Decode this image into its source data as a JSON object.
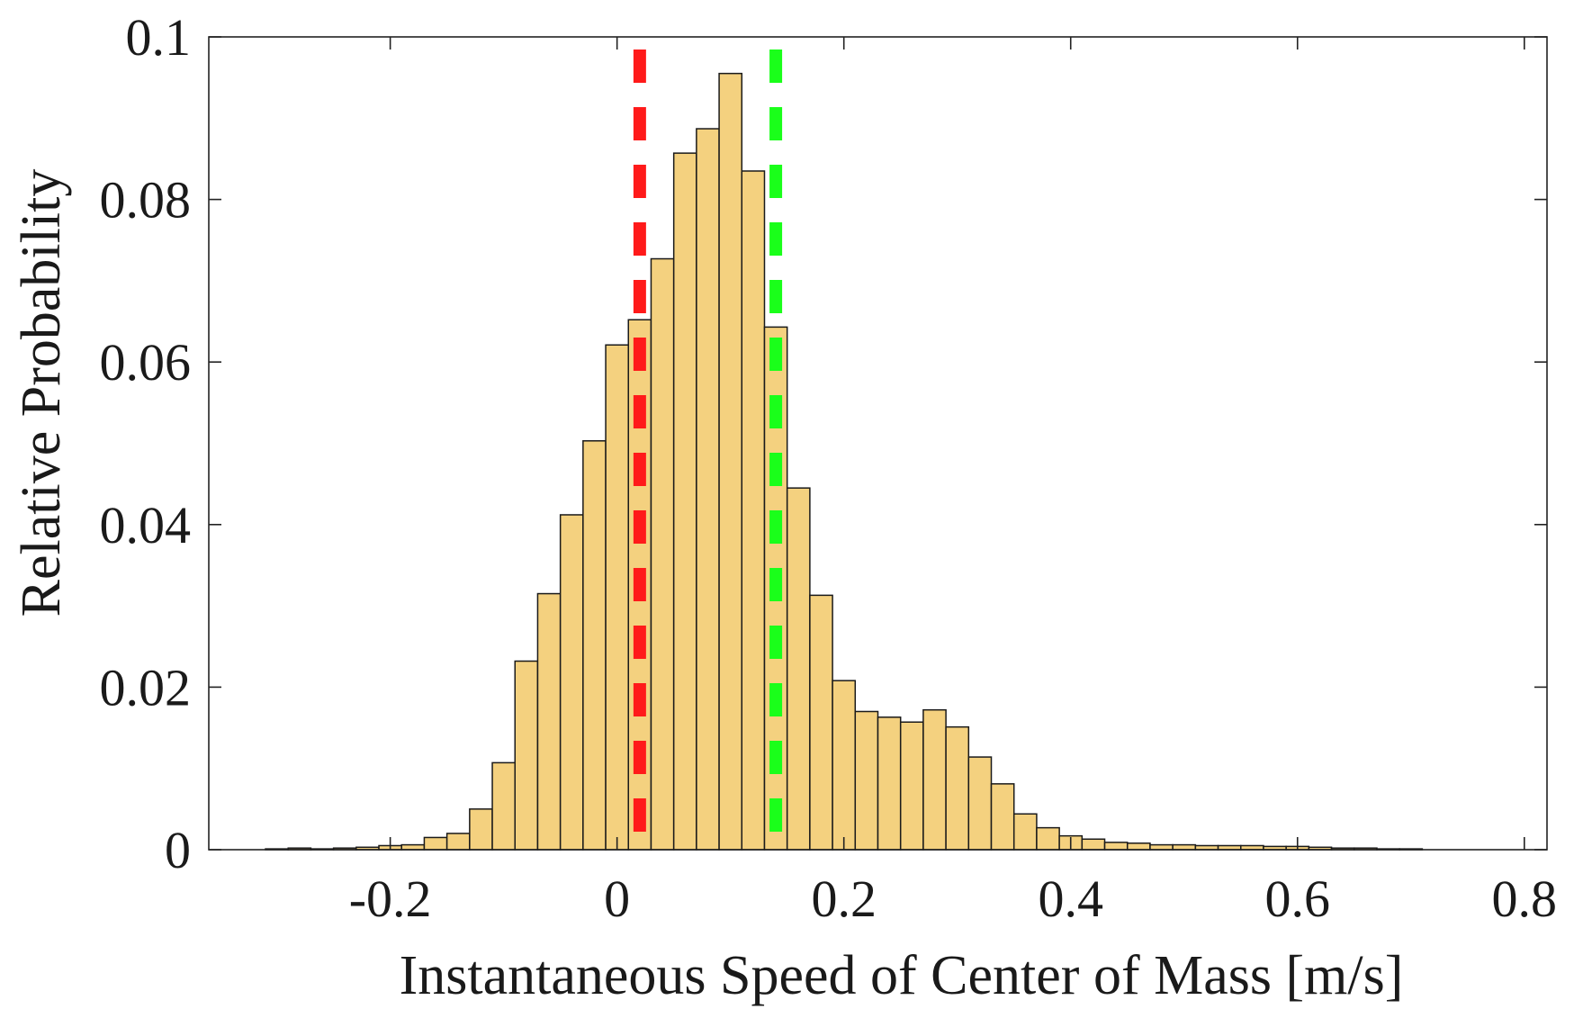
{
  "chart_data": {
    "type": "bar",
    "title": "",
    "xlabel": "Instantaneous Speed of Center of Mass [m/s]",
    "ylabel": "Relative Probability",
    "xlim": [
      -0.36,
      0.82
    ],
    "ylim": [
      0,
      0.1
    ],
    "xticks": [
      -0.2,
      0,
      0.2,
      0.4,
      0.6,
      0.8
    ],
    "xtick_labels": [
      "-0.2",
      "0",
      "0.2",
      "0.4",
      "0.6",
      "0.8"
    ],
    "yticks": [
      0,
      0.02,
      0.04,
      0.06,
      0.08,
      0.1
    ],
    "ytick_labels": [
      "0",
      "0.02",
      "0.04",
      "0.06",
      "0.08",
      "0.1"
    ],
    "grid": false,
    "bin_width": 0.02,
    "bin_edges_start": -0.31,
    "values": [
      0.0001,
      0.0002,
      0.0001,
      0.0002,
      0.0003,
      0.0005,
      0.0006,
      0.0015,
      0.002,
      0.005,
      0.0107,
      0.0232,
      0.0315,
      0.0412,
      0.0503,
      0.0621,
      0.0652,
      0.0727,
      0.0857,
      0.0887,
      0.0955,
      0.0835,
      0.0643,
      0.0445,
      0.0313,
      0.0208,
      0.017,
      0.0163,
      0.0157,
      0.0172,
      0.0151,
      0.0114,
      0.0081,
      0.0044,
      0.0027,
      0.0017,
      0.0013,
      0.0009,
      0.0008,
      0.0006,
      0.0006,
      0.0005,
      0.0005,
      0.0005,
      0.0004,
      0.0004,
      0.0003,
      0.0002,
      0.0002,
      0.0001,
      0.0001
    ],
    "bar_color": "#f4d17f",
    "reference_lines": [
      {
        "x": 0.02,
        "color": "#ff1a1a",
        "style": "dashed"
      },
      {
        "x": 0.14,
        "color": "#1aff1a",
        "style": "dashed"
      }
    ]
  }
}
